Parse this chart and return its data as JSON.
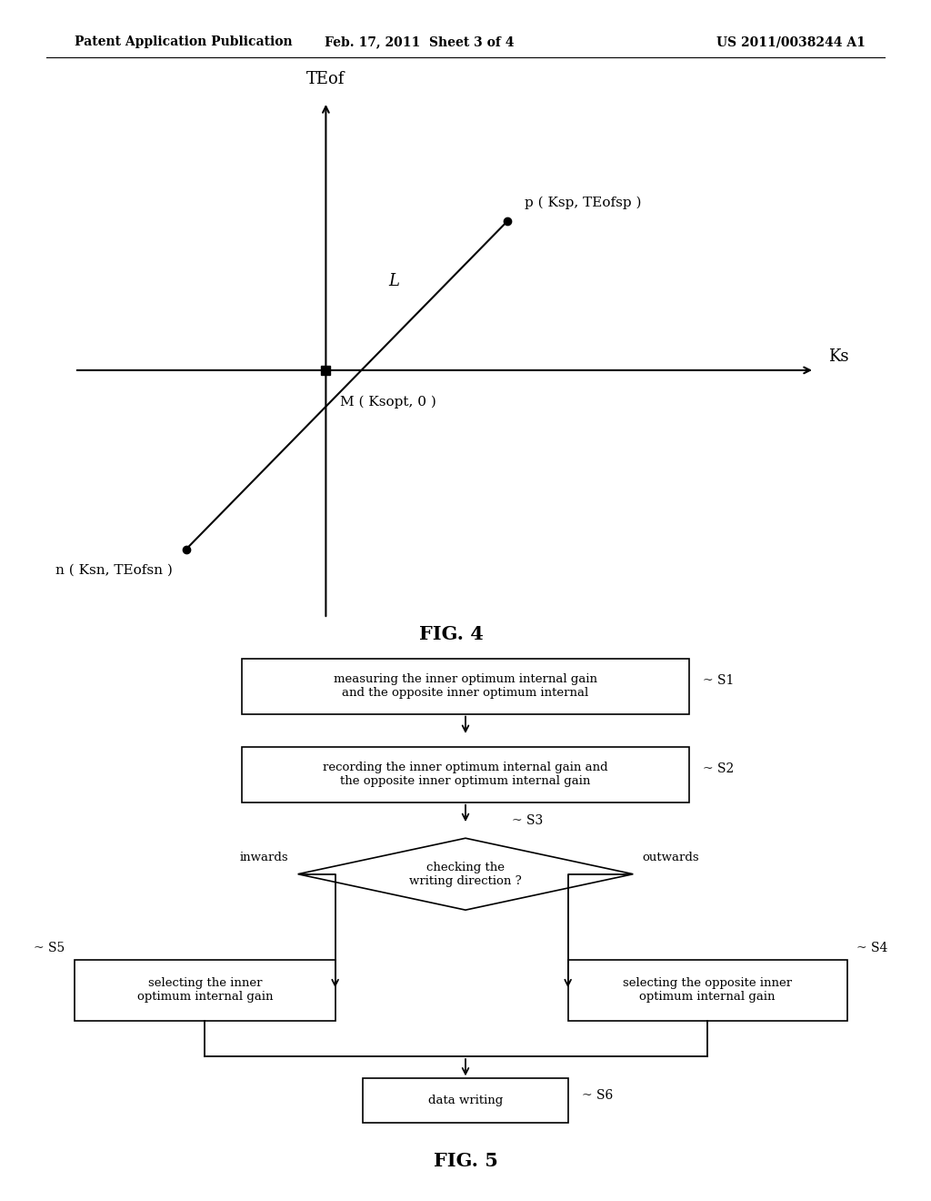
{
  "header_left": "Patent Application Publication",
  "header_mid": "Feb. 17, 2011  Sheet 3 of 4",
  "header_right": "US 2011/0038244 A1",
  "fig4_title": "FIG. 4",
  "fig5_title": "FIG. 5",
  "axis_y_label": "TEof",
  "axis_x_label": "Ks",
  "point_p_label": "p ( Ksp, TEofsp )",
  "point_M_label": "M ( Ksopt, 0 )",
  "point_n_label": "n ( Ksn, TEofsn )",
  "line_label": "L",
  "box1_text": "measuring the inner optimum internal gain\nand the opposite inner optimum internal",
  "box1_label": "S1",
  "box2_text": "recording the inner optimum internal gain and\nthe opposite inner optimum internal gain",
  "box2_label": "S2",
  "diamond_text": "checking the\nwriting direction ?",
  "diamond_label": "S3",
  "box_left_text": "selecting the inner\noptimum internal gain",
  "box_left_label": "S5",
  "box_right_text": "selecting the opposite inner\noptimum internal gain",
  "box_right_label": "S4",
  "box_bottom_text": "data writing",
  "box_bottom_label": "S6",
  "arrow_left_label": "inwards",
  "arrow_right_label": "outwards",
  "bg_color": "#ffffff",
  "line_color": "#000000",
  "text_color": "#000000"
}
